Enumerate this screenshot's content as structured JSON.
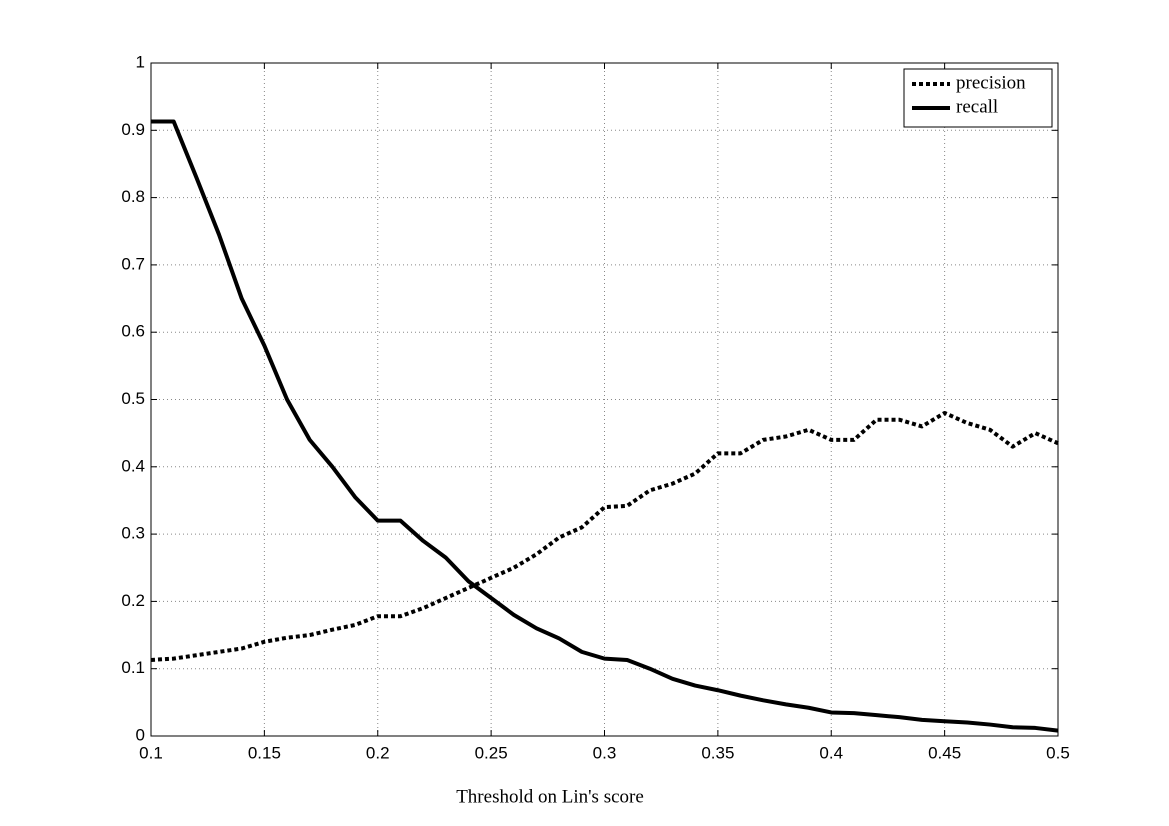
{
  "chart_data": {
    "type": "line",
    "xlabel": "Threshold on Lin's score",
    "x": [
      0.1,
      0.11,
      0.12,
      0.13,
      0.14,
      0.15,
      0.16,
      0.17,
      0.18,
      0.19,
      0.2,
      0.21,
      0.22,
      0.23,
      0.24,
      0.25,
      0.26,
      0.27,
      0.28,
      0.29,
      0.3,
      0.31,
      0.32,
      0.33,
      0.34,
      0.35,
      0.36,
      0.37,
      0.38,
      0.39,
      0.4,
      0.41,
      0.42,
      0.43,
      0.44,
      0.45,
      0.46,
      0.47,
      0.48,
      0.49,
      0.5
    ],
    "series": [
      {
        "name": "precision",
        "color": "#000000",
        "dash": "dotted",
        "values": [
          0.113,
          0.115,
          0.12,
          0.125,
          0.13,
          0.14,
          0.146,
          0.15,
          0.158,
          0.165,
          0.178,
          0.178,
          0.19,
          0.205,
          0.22,
          0.235,
          0.25,
          0.27,
          0.295,
          0.31,
          0.34,
          0.342,
          0.365,
          0.375,
          0.39,
          0.42,
          0.42,
          0.44,
          0.445,
          0.455,
          0.44,
          0.44,
          0.47,
          0.47,
          0.46,
          0.48,
          0.465,
          0.455,
          0.43,
          0.45,
          0.435
        ]
      },
      {
        "name": "recall",
        "color": "#000000",
        "dash": "solid",
        "values": [
          0.913,
          0.913,
          0.83,
          0.745,
          0.65,
          0.58,
          0.5,
          0.44,
          0.4,
          0.355,
          0.32,
          0.32,
          0.29,
          0.265,
          0.23,
          0.205,
          0.18,
          0.16,
          0.145,
          0.125,
          0.115,
          0.113,
          0.1,
          0.085,
          0.075,
          0.068,
          0.06,
          0.053,
          0.047,
          0.042,
          0.035,
          0.034,
          0.031,
          0.028,
          0.024,
          0.022,
          0.02,
          0.017,
          0.013,
          0.012,
          0.008
        ]
      }
    ],
    "xlim": [
      0.1,
      0.5
    ],
    "xticks": [
      0.1,
      0.15,
      0.2,
      0.25,
      0.3,
      0.35,
      0.4,
      0.45,
      0.5
    ],
    "ylim": [
      0,
      1
    ],
    "yticks": [
      0,
      0.1,
      0.2,
      0.3,
      0.4,
      0.5,
      0.6,
      0.7,
      0.8,
      0.9,
      1
    ],
    "grid": true,
    "legend": "top-right"
  }
}
